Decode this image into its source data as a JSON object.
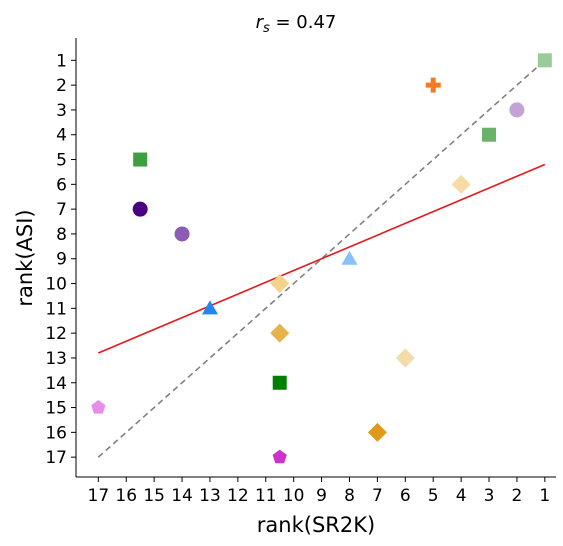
{
  "chart_data": {
    "type": "scatter",
    "title_prefix": "r",
    "title_subscript": "s",
    "title_suffix": " = 0.47",
    "xlabel": "rank(SR2K)",
    "ylabel": "rank(ASI)",
    "x_ticks": [
      17,
      16,
      15,
      14,
      13,
      12,
      11,
      10,
      9,
      8,
      7,
      6,
      5,
      4,
      3,
      2,
      1
    ],
    "y_ticks": [
      1,
      2,
      3,
      4,
      5,
      6,
      7,
      8,
      9,
      10,
      11,
      12,
      13,
      14,
      15,
      16,
      17
    ],
    "x_reversed": true,
    "y_reversed": true,
    "xlim": [
      17.8,
      0.6
    ],
    "ylim": [
      17.8,
      0.1
    ],
    "grid": false,
    "points": [
      {
        "x": 1,
        "y": 1,
        "marker": "square",
        "color": "#99cc99"
      },
      {
        "x": 5,
        "y": 2,
        "marker": "plus",
        "color": "#f47a20"
      },
      {
        "x": 2,
        "y": 3,
        "marker": "circle",
        "color": "#c3a3d6"
      },
      {
        "x": 3,
        "y": 4,
        "marker": "square",
        "color": "#6ab26a"
      },
      {
        "x": 15.5,
        "y": 5,
        "marker": "square",
        "color": "#3d9f3d"
      },
      {
        "x": 4,
        "y": 6,
        "marker": "diamond",
        "color": "#f7dba6"
      },
      {
        "x": 15.5,
        "y": 7,
        "marker": "circle",
        "color": "#4b0082"
      },
      {
        "x": 14,
        "y": 8,
        "marker": "circle",
        "color": "#8c5bb5"
      },
      {
        "x": 8,
        "y": 9,
        "marker": "triangle",
        "color": "#87c1f7"
      },
      {
        "x": 10.5,
        "y": 10,
        "marker": "diamond",
        "color": "#f5d28a"
      },
      {
        "x": 13,
        "y": 11,
        "marker": "triangle",
        "color": "#1e88f0"
      },
      {
        "x": 10.5,
        "y": 12,
        "marker": "diamond",
        "color": "#e6b24a"
      },
      {
        "x": 6,
        "y": 13,
        "marker": "diamond",
        "color": "#f5dba8"
      },
      {
        "x": 10.5,
        "y": 14,
        "marker": "square",
        "color": "#008000"
      },
      {
        "x": 17,
        "y": 15,
        "marker": "pentagon",
        "color": "#e88ee8"
      },
      {
        "x": 7,
        "y": 16,
        "marker": "diamond",
        "color": "#e09a1a"
      },
      {
        "x": 10.5,
        "y": 17,
        "marker": "pentagon",
        "color": "#cc33cc"
      }
    ],
    "identity_line": {
      "x": [
        17,
        1
      ],
      "y": [
        17,
        1
      ],
      "color": "#808080",
      "style": "dashed"
    },
    "fit_line": {
      "x": [
        17,
        1
      ],
      "y": [
        12.8,
        5.2
      ],
      "color": "#e8181a",
      "style": "solid"
    }
  }
}
